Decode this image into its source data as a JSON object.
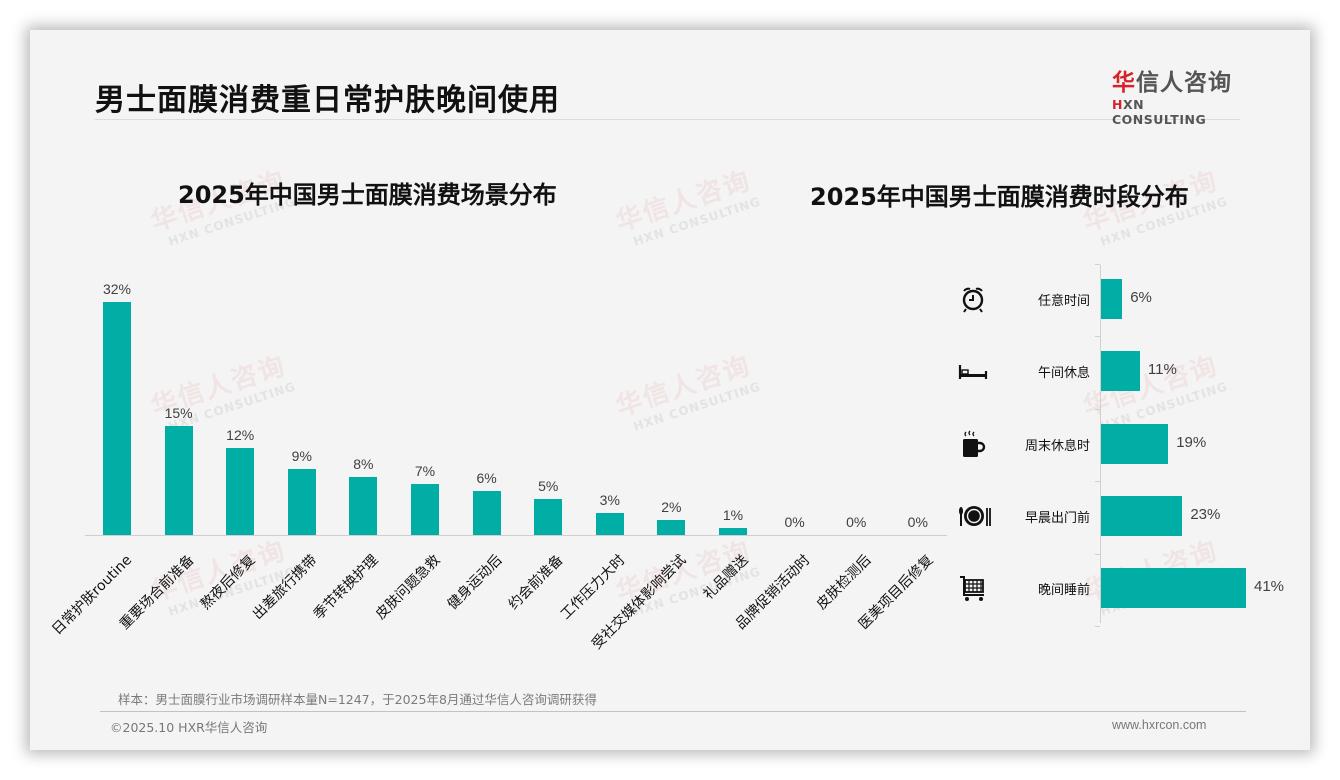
{
  "header": {
    "title": "男士面膜消费重日常护肤晚间使用",
    "logo_cn_red": "华",
    "logo_cn_rest": "信人咨询",
    "logo_en_red": "H",
    "logo_en_rest": "XN CONSULTING"
  },
  "watermark": {
    "cn": "华信人咨询",
    "en": "HXN CONSULTING"
  },
  "left_chart": {
    "title": "2025年中国男士面膜消费场景分布"
  },
  "right_chart": {
    "title": "2025年中国男士面膜消费时段分布"
  },
  "colors": {
    "bar": "#00aea6",
    "brand_red": "#d4242a"
  },
  "chart_data": [
    {
      "type": "bar",
      "title": "2025年中国男士面膜消费场景分布",
      "categories": [
        "日常护肤routine",
        "重要场合前准备",
        "熬夜后修复",
        "出差旅行携带",
        "季节转换护理",
        "皮肤问题急救",
        "健身运动后",
        "约会前准备",
        "工作压力大时",
        "受社交媒体影响尝试",
        "礼品赠送",
        "品牌促销活动时",
        "皮肤检测后",
        "医美项目后修复"
      ],
      "values": [
        32,
        15,
        12,
        9,
        8,
        7,
        6,
        5,
        3,
        2,
        1,
        0,
        0,
        0
      ],
      "labels": [
        "32%",
        "15%",
        "12%",
        "9%",
        "8%",
        "7%",
        "6%",
        "5%",
        "3%",
        "2%",
        "1%",
        "0%",
        "0%",
        "0%"
      ],
      "xlabel": "",
      "ylabel": "",
      "ylim": [
        0,
        32
      ],
      "grid": false,
      "legend": "none"
    },
    {
      "type": "bar",
      "orientation": "horizontal",
      "title": "2025年中国男士面膜消费时段分布",
      "categories": [
        "任意时间",
        "午间休息",
        "周末休息时",
        "早晨出门前",
        "晚间睡前"
      ],
      "values": [
        6,
        11,
        19,
        23,
        41
      ],
      "labels": [
        "6%",
        "11%",
        "19%",
        "23%",
        "41%"
      ],
      "icons": [
        "alarm-clock-icon",
        "bed-icon",
        "coffee-mug-icon",
        "plate-cutlery-icon",
        "shopping-cart-icon"
      ],
      "xlabel": "",
      "ylabel": "",
      "xlim": [
        0,
        41
      ],
      "grid": false,
      "legend": "none"
    }
  ],
  "footer": {
    "note": "样本：男士面膜行业市场调研样本量N=1247，于2025年8月通过华信人咨询调研获得",
    "copyright": "©2025.10 HXR华信人咨询",
    "website": "www.hxrcon.com"
  }
}
